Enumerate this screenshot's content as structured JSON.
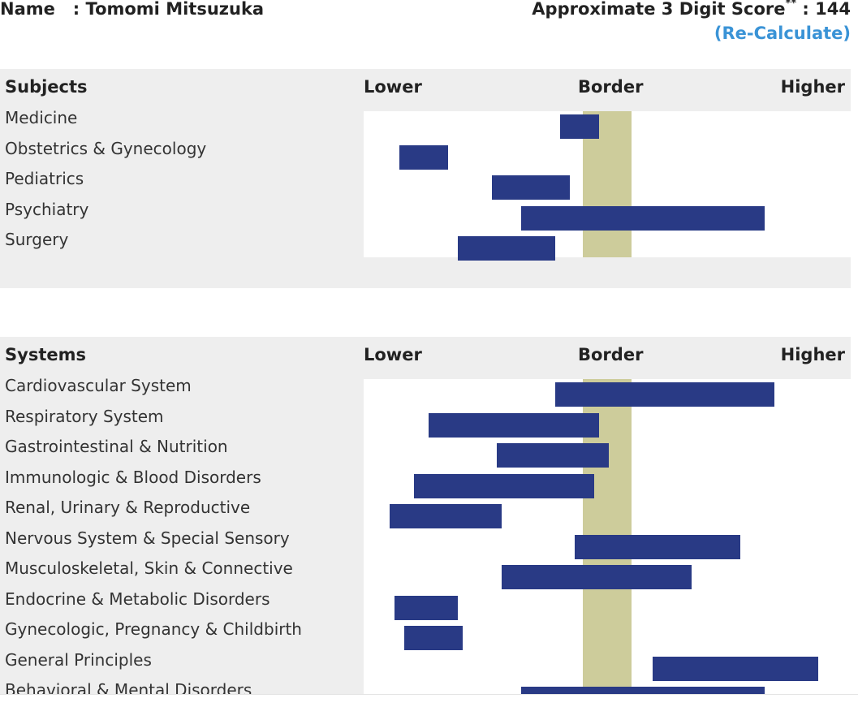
{
  "header": {
    "name_label": "Name",
    "name_value": "Tomomi Mitsuzuka",
    "score_label": "Approximate 3 Digit Score",
    "score_marker": "**",
    "score_value": "144",
    "recalc_label": "(Re-Calculate)"
  },
  "colors": {
    "bar": "#293a85",
    "border_band": "#cdcc9b",
    "panel_bg": "#eeeeee",
    "link": "#3a93d6"
  },
  "chart_data": [
    {
      "type": "bar",
      "orientation": "horizontal-range",
      "title": "Subjects",
      "axis_labels": {
        "lower": "Lower",
        "border": "Border",
        "higher": "Higher"
      },
      "xlim": [
        0,
        100
      ],
      "border_band": [
        45,
        55
      ],
      "categories": [
        "Medicine",
        "Obstetrics & Gynecology",
        "Pediatrics",
        "Psychiatry",
        "Surgery"
      ],
      "ranges": [
        [
          40.3,
          48.3
        ],
        [
          7.3,
          17.3
        ],
        [
          26.3,
          42.3
        ],
        [
          32.3,
          82.3
        ],
        [
          19.3,
          39.3
        ]
      ]
    },
    {
      "type": "bar",
      "orientation": "horizontal-range",
      "title": "Systems",
      "axis_labels": {
        "lower": "Lower",
        "border": "Border",
        "higher": "Higher"
      },
      "xlim": [
        0,
        100
      ],
      "border_band": [
        45,
        55
      ],
      "categories": [
        "Cardiovascular System",
        "Respiratory System",
        "Gastrointestinal & Nutrition",
        "Immunologic & Blood Disorders",
        "Renal, Urinary & Reproductive",
        "Nervous System & Special Sensory",
        "Musculoskeletal, Skin & Connective",
        "Endocrine & Metabolic Disorders",
        "Gynecologic, Pregnancy & Childbirth",
        "General Principles",
        "Behavioral & Mental Disorders"
      ],
      "ranges": [
        [
          39.3,
          84.3
        ],
        [
          13.3,
          48.3
        ],
        [
          27.3,
          50.3
        ],
        [
          10.3,
          47.3
        ],
        [
          5.3,
          28.3
        ],
        [
          43.3,
          77.3
        ],
        [
          28.3,
          67.3
        ],
        [
          6.3,
          19.3
        ],
        [
          8.3,
          20.3
        ],
        [
          59.3,
          93.3
        ],
        [
          32.3,
          82.3
        ]
      ]
    }
  ]
}
